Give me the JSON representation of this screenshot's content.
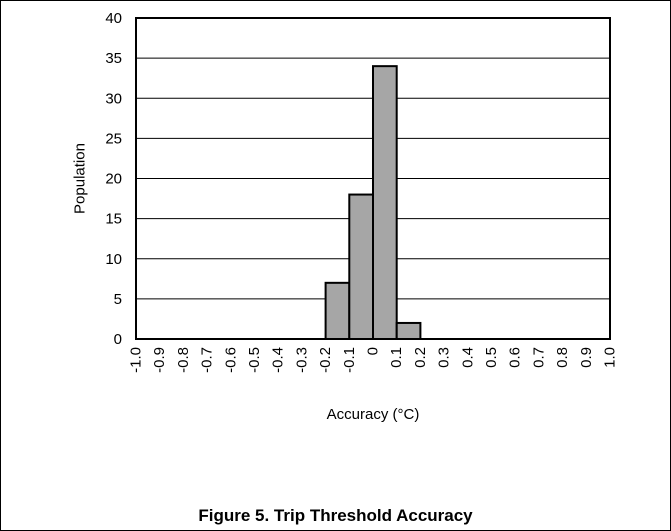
{
  "chart_data": {
    "type": "bar",
    "title": "",
    "xlabel": "Accuracy (°C)",
    "ylabel": "Population",
    "ylim": [
      0,
      40
    ],
    "y_ticks": [
      0,
      5,
      10,
      15,
      20,
      25,
      30,
      35,
      40
    ],
    "x_ticks": [
      "-1.0",
      "-0.9",
      "-0.8",
      "-0.7",
      "-0.6",
      "-0.5",
      "-0.4",
      "-0.3",
      "-0.2",
      "-0.1",
      "0",
      "0.1",
      "0.2",
      "0.3",
      "0.4",
      "0.5",
      "0.6",
      "0.7",
      "0.8",
      "0.9",
      "1.0"
    ],
    "bins": [
      {
        "from": -0.2,
        "to": -0.1,
        "value": 7
      },
      {
        "from": -0.1,
        "to": 0.0,
        "value": 18
      },
      {
        "from": 0.0,
        "to": 0.1,
        "value": 34
      },
      {
        "from": 0.1,
        "to": 0.2,
        "value": 2
      }
    ],
    "xlim": [
      -1.0,
      1.0
    ],
    "grid": "horizontal",
    "bar_color": "#a6a6a6"
  },
  "caption": "Figure 5. Trip Threshold Accuracy"
}
